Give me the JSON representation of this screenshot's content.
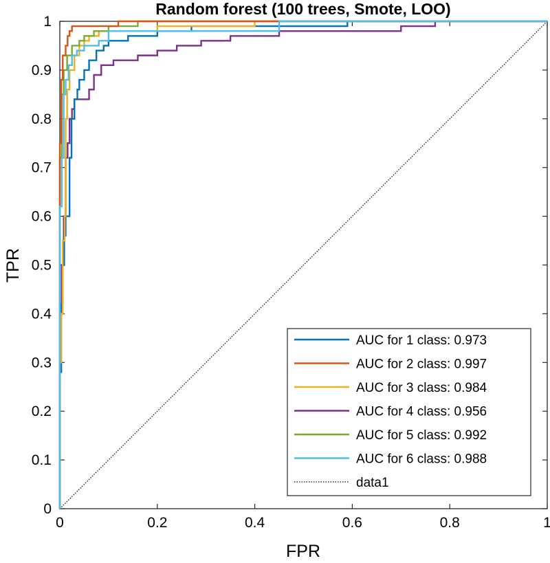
{
  "chart_data": {
    "type": "line",
    "title": "Random forest (100 trees, Smote, LOO)",
    "xlabel": "FPR",
    "ylabel": "TPR",
    "xlim": [
      0,
      1
    ],
    "ylim": [
      0,
      1
    ],
    "xticks": [
      "0",
      "0.2",
      "0.4",
      "0.6",
      "0.8",
      "1"
    ],
    "yticks": [
      "0",
      "0.1",
      "0.2",
      "0.3",
      "0.4",
      "0.5",
      "0.6",
      "0.7",
      "0.8",
      "0.9",
      "1"
    ],
    "grid": false,
    "legend_position": "bottom-right",
    "series": [
      {
        "name": "AUC for 1 class: 0.973",
        "color": "#0072BD",
        "style": "solid",
        "points": [
          [
            0,
            0
          ],
          [
            0,
            0.28
          ],
          [
            0.003,
            0.28
          ],
          [
            0.003,
            0.42
          ],
          [
            0.006,
            0.42
          ],
          [
            0.006,
            0.5
          ],
          [
            0.009,
            0.5
          ],
          [
            0.009,
            0.56
          ],
          [
            0.012,
            0.56
          ],
          [
            0.012,
            0.6
          ],
          [
            0.02,
            0.6
          ],
          [
            0.02,
            0.72
          ],
          [
            0.024,
            0.72
          ],
          [
            0.024,
            0.8
          ],
          [
            0.03,
            0.8
          ],
          [
            0.03,
            0.84
          ],
          [
            0.036,
            0.84
          ],
          [
            0.036,
            0.86
          ],
          [
            0.04,
            0.86
          ],
          [
            0.04,
            0.88
          ],
          [
            0.05,
            0.88
          ],
          [
            0.05,
            0.9
          ],
          [
            0.06,
            0.9
          ],
          [
            0.06,
            0.92
          ],
          [
            0.075,
            0.92
          ],
          [
            0.075,
            0.94
          ],
          [
            0.09,
            0.94
          ],
          [
            0.09,
            0.95
          ],
          [
            0.1,
            0.95
          ],
          [
            0.1,
            0.96
          ],
          [
            0.14,
            0.96
          ],
          [
            0.14,
            0.97
          ],
          [
            0.2,
            0.97
          ],
          [
            0.2,
            0.98
          ],
          [
            0.27,
            0.98
          ],
          [
            0.27,
            0.99
          ],
          [
            0.59,
            0.99
          ],
          [
            0.59,
            1
          ],
          [
            1,
            1
          ]
        ]
      },
      {
        "name": "AUC for 2 class: 0.997",
        "color": "#D95319",
        "style": "solid",
        "points": [
          [
            0,
            0
          ],
          [
            0,
            0.75
          ],
          [
            0.003,
            0.75
          ],
          [
            0.003,
            0.88
          ],
          [
            0.006,
            0.88
          ],
          [
            0.006,
            0.93
          ],
          [
            0.012,
            0.93
          ],
          [
            0.012,
            0.95
          ],
          [
            0.016,
            0.95
          ],
          [
            0.016,
            0.97
          ],
          [
            0.02,
            0.97
          ],
          [
            0.02,
            0.98
          ],
          [
            0.025,
            0.98
          ],
          [
            0.025,
            0.99
          ],
          [
            0.12,
            0.99
          ],
          [
            0.12,
            1
          ],
          [
            1,
            1
          ]
        ]
      },
      {
        "name": "AUC for 3 class: 0.984",
        "color": "#EDB120",
        "style": "solid",
        "points": [
          [
            0,
            0
          ],
          [
            0,
            0.3
          ],
          [
            0.003,
            0.3
          ],
          [
            0.003,
            0.4
          ],
          [
            0.006,
            0.4
          ],
          [
            0.006,
            0.55
          ],
          [
            0.01,
            0.55
          ],
          [
            0.01,
            0.6
          ],
          [
            0.012,
            0.6
          ],
          [
            0.012,
            0.8
          ],
          [
            0.015,
            0.8
          ],
          [
            0.015,
            0.86
          ],
          [
            0.02,
            0.86
          ],
          [
            0.02,
            0.9
          ],
          [
            0.03,
            0.9
          ],
          [
            0.03,
            0.93
          ],
          [
            0.04,
            0.93
          ],
          [
            0.04,
            0.95
          ],
          [
            0.05,
            0.95
          ],
          [
            0.05,
            0.96
          ],
          [
            0.06,
            0.96
          ],
          [
            0.06,
            0.97
          ],
          [
            0.08,
            0.97
          ],
          [
            0.08,
            0.98
          ],
          [
            0.2,
            0.98
          ],
          [
            0.2,
            0.99
          ],
          [
            0.4,
            0.99
          ],
          [
            0.4,
            1
          ],
          [
            1,
            1
          ]
        ]
      },
      {
        "name": "AUC for 4 class: 0.956",
        "color": "#7E2F8E",
        "style": "solid",
        "points": [
          [
            0,
            0
          ],
          [
            0,
            0.42
          ],
          [
            0.004,
            0.42
          ],
          [
            0.004,
            0.5
          ],
          [
            0.008,
            0.5
          ],
          [
            0.008,
            0.6
          ],
          [
            0.012,
            0.6
          ],
          [
            0.012,
            0.72
          ],
          [
            0.016,
            0.72
          ],
          [
            0.016,
            0.75
          ],
          [
            0.02,
            0.75
          ],
          [
            0.02,
            0.8
          ],
          [
            0.025,
            0.8
          ],
          [
            0.025,
            0.82
          ],
          [
            0.03,
            0.82
          ],
          [
            0.03,
            0.84
          ],
          [
            0.06,
            0.84
          ],
          [
            0.06,
            0.86
          ],
          [
            0.07,
            0.86
          ],
          [
            0.07,
            0.89
          ],
          [
            0.085,
            0.89
          ],
          [
            0.085,
            0.91
          ],
          [
            0.11,
            0.91
          ],
          [
            0.11,
            0.92
          ],
          [
            0.16,
            0.92
          ],
          [
            0.16,
            0.93
          ],
          [
            0.2,
            0.93
          ],
          [
            0.2,
            0.94
          ],
          [
            0.24,
            0.94
          ],
          [
            0.24,
            0.95
          ],
          [
            0.29,
            0.95
          ],
          [
            0.29,
            0.96
          ],
          [
            0.35,
            0.96
          ],
          [
            0.35,
            0.97
          ],
          [
            0.45,
            0.97
          ],
          [
            0.45,
            0.98
          ],
          [
            0.7,
            0.98
          ],
          [
            0.7,
            0.99
          ],
          [
            0.77,
            0.99
          ],
          [
            0.77,
            1
          ],
          [
            1,
            1
          ]
        ]
      },
      {
        "name": "AUC for 5 class: 0.992",
        "color": "#77AC30",
        "style": "solid",
        "points": [
          [
            0,
            0
          ],
          [
            0,
            0.72
          ],
          [
            0.004,
            0.72
          ],
          [
            0.004,
            0.85
          ],
          [
            0.008,
            0.85
          ],
          [
            0.008,
            0.9
          ],
          [
            0.015,
            0.9
          ],
          [
            0.015,
            0.93
          ],
          [
            0.025,
            0.93
          ],
          [
            0.025,
            0.95
          ],
          [
            0.04,
            0.95
          ],
          [
            0.04,
            0.96
          ],
          [
            0.05,
            0.96
          ],
          [
            0.05,
            0.97
          ],
          [
            0.07,
            0.97
          ],
          [
            0.07,
            0.98
          ],
          [
            0.1,
            0.98
          ],
          [
            0.1,
            0.99
          ],
          [
            0.16,
            0.99
          ],
          [
            0.16,
            1
          ],
          [
            1,
            1
          ]
        ]
      },
      {
        "name": "AUC for 6 class: 0.988",
        "color": "#4DBEEE",
        "style": "solid",
        "points": [
          [
            0,
            0
          ],
          [
            0,
            0.62
          ],
          [
            0.004,
            0.62
          ],
          [
            0.004,
            0.72
          ],
          [
            0.008,
            0.72
          ],
          [
            0.008,
            0.85
          ],
          [
            0.012,
            0.85
          ],
          [
            0.012,
            0.88
          ],
          [
            0.018,
            0.88
          ],
          [
            0.018,
            0.91
          ],
          [
            0.025,
            0.91
          ],
          [
            0.025,
            0.93
          ],
          [
            0.035,
            0.93
          ],
          [
            0.035,
            0.94
          ],
          [
            0.05,
            0.94
          ],
          [
            0.05,
            0.95
          ],
          [
            0.08,
            0.95
          ],
          [
            0.08,
            0.96
          ],
          [
            0.1,
            0.96
          ],
          [
            0.1,
            0.98
          ],
          [
            0.45,
            0.98
          ],
          [
            0.45,
            1
          ],
          [
            1,
            1
          ]
        ]
      },
      {
        "name": "data1",
        "color": "#000000",
        "style": "dotted",
        "points": [
          [
            0,
            0
          ],
          [
            1,
            1
          ]
        ]
      }
    ]
  }
}
